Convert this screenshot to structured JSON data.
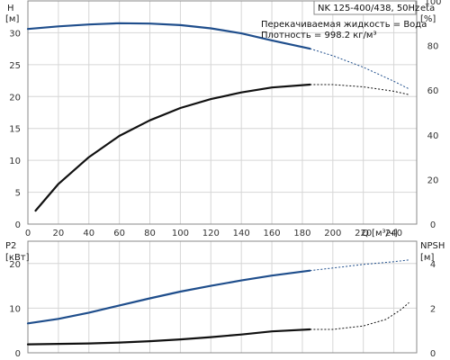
{
  "title_box": "NK 125-400/438, 50Hz",
  "info_lines": [
    "Перекачиваемая жидкость = Вода",
    "Плотность = 998.2 кг/м³"
  ],
  "chart_data": [
    {
      "type": "line",
      "name": "upper",
      "x_label": "Q [м³/ч]",
      "x_ticks": [
        0,
        20,
        40,
        60,
        80,
        100,
        120,
        140,
        160,
        180,
        200,
        220,
        240
      ],
      "xlim": [
        0,
        255
      ],
      "grid": true,
      "left_axis": {
        "label_top": "H",
        "label_unit": "[м]",
        "range": [
          0,
          35
        ],
        "ticks": [
          0,
          5,
          10,
          15,
          20,
          25,
          30
        ]
      },
      "right_axis": {
        "label_top": "eta",
        "label_unit": "[%]",
        "range": [
          0,
          100
        ],
        "ticks": [
          0,
          20,
          40,
          60,
          80,
          100
        ]
      },
      "series": [
        {
          "axis": "left",
          "color": "#1f4e8c",
          "solid_until": 185,
          "points": [
            [
              0,
              30.6
            ],
            [
              20,
              31.0
            ],
            [
              40,
              31.3
            ],
            [
              60,
              31.5
            ],
            [
              80,
              31.45
            ],
            [
              100,
              31.2
            ],
            [
              120,
              30.7
            ],
            [
              140,
              29.9
            ],
            [
              160,
              28.8
            ],
            [
              185,
              27.5
            ],
            [
              200,
              26.4
            ],
            [
              220,
              24.6
            ],
            [
              240,
              22.4
            ],
            [
              250,
              21.2
            ]
          ]
        },
        {
          "axis": "right",
          "color": "#111111",
          "solid_until": 185,
          "points": [
            [
              5,
              6
            ],
            [
              20,
              18
            ],
            [
              40,
              30
            ],
            [
              60,
              39.5
            ],
            [
              80,
              46.5
            ],
            [
              100,
              52
            ],
            [
              120,
              56
            ],
            [
              140,
              59
            ],
            [
              160,
              61.2
            ],
            [
              185,
              62.5
            ],
            [
              200,
              62.5
            ],
            [
              220,
              61.5
            ],
            [
              240,
              59.5
            ],
            [
              250,
              58
            ]
          ]
        }
      ]
    },
    {
      "type": "line",
      "name": "lower",
      "xlim": [
        0,
        255
      ],
      "grid": true,
      "left_axis": {
        "label_top": "P2",
        "label_unit": "[кВт]",
        "range": [
          0,
          25
        ],
        "ticks": [
          0,
          10,
          20
        ]
      },
      "right_axis": {
        "label_top": "NPSH",
        "label_unit": "[м]",
        "range": [
          0,
          5
        ],
        "ticks": [
          0,
          2,
          4
        ]
      },
      "series": [
        {
          "axis": "left",
          "color": "#1f4e8c",
          "solid_until": 185,
          "points": [
            [
              0,
              6.6
            ],
            [
              20,
              7.6
            ],
            [
              40,
              9.0
            ],
            [
              60,
              10.6
            ],
            [
              80,
              12.2
            ],
            [
              100,
              13.7
            ],
            [
              120,
              15.0
            ],
            [
              140,
              16.2
            ],
            [
              160,
              17.3
            ],
            [
              185,
              18.4
            ],
            [
              200,
              19.0
            ],
            [
              220,
              19.8
            ],
            [
              240,
              20.4
            ],
            [
              250,
              20.8
            ]
          ]
        },
        {
          "axis": "right",
          "color": "#111111",
          "solid_until": 185,
          "points": [
            [
              0,
              0.38
            ],
            [
              20,
              0.4
            ],
            [
              40,
              0.42
            ],
            [
              60,
              0.46
            ],
            [
              80,
              0.52
            ],
            [
              100,
              0.6
            ],
            [
              120,
              0.7
            ],
            [
              140,
              0.82
            ],
            [
              160,
              0.96
            ],
            [
              185,
              1.05
            ],
            [
              200,
              1.05
            ],
            [
              220,
              1.2
            ],
            [
              235,
              1.5
            ],
            [
              245,
              1.95
            ],
            [
              250,
              2.25
            ]
          ]
        }
      ]
    }
  ]
}
